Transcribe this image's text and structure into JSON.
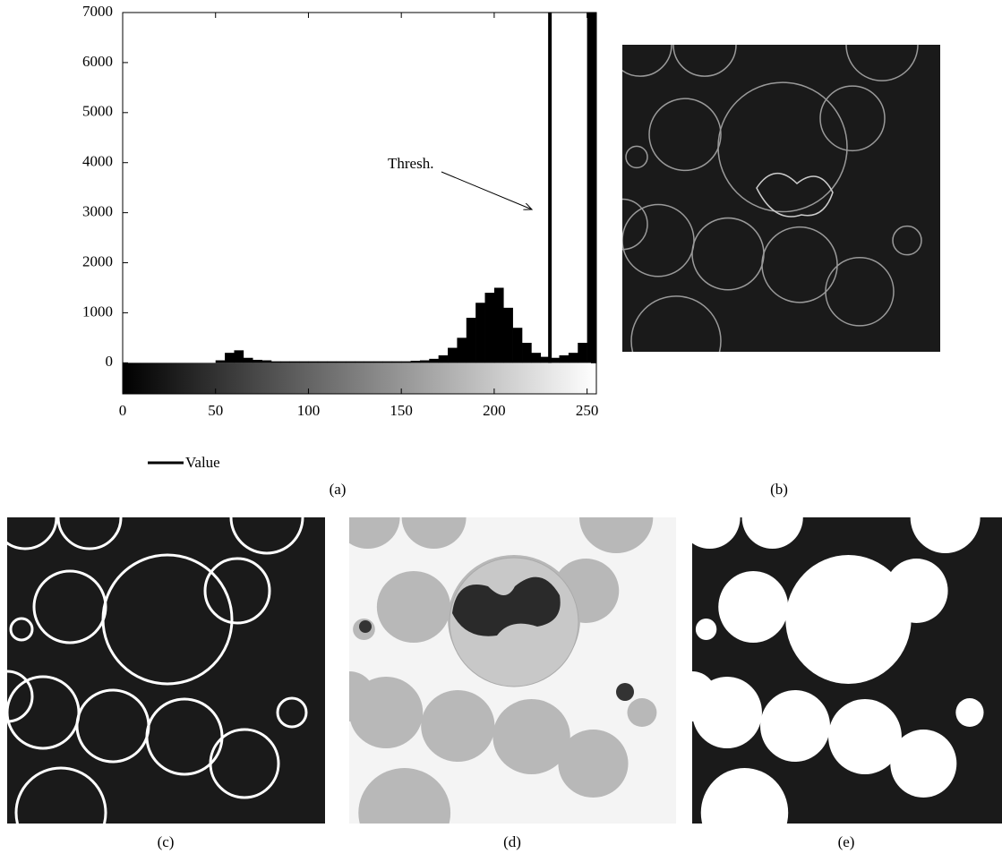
{
  "chart_data": {
    "type": "histogram",
    "bins": [
      0,
      5,
      10,
      15,
      20,
      25,
      30,
      35,
      40,
      45,
      50,
      55,
      60,
      65,
      70,
      75,
      80,
      85,
      90,
      95,
      100,
      105,
      110,
      115,
      120,
      125,
      130,
      135,
      140,
      145,
      150,
      155,
      160,
      165,
      170,
      175,
      180,
      185,
      190,
      195,
      200,
      205,
      210,
      215,
      220,
      225,
      230,
      235,
      240,
      245,
      250,
      255
    ],
    "values": [
      0,
      0,
      0,
      0,
      0,
      0,
      0,
      0,
      0,
      0,
      50,
      200,
      250,
      100,
      60,
      50,
      30,
      30,
      30,
      30,
      30,
      30,
      30,
      30,
      30,
      30,
      30,
      30,
      30,
      30,
      30,
      40,
      50,
      80,
      150,
      300,
      500,
      900,
      1200,
      1400,
      1500,
      1100,
      700,
      400,
      200,
      120,
      100,
      150,
      200,
      400,
      7000
    ],
    "color": "#000000",
    "xlim": [
      0,
      255
    ],
    "ylim": [
      -620,
      7000
    ],
    "xticks": [
      0,
      50,
      100,
      150,
      200,
      250
    ],
    "yticks": [
      0,
      1000,
      2000,
      3000,
      4000,
      5000,
      6000,
      7000
    ],
    "lines": [
      {
        "name": "Value",
        "x": 230,
        "color": "#000000"
      }
    ],
    "annotations": [
      {
        "text": "Thresh."
      }
    ]
  },
  "panels": [
    {
      "label": "(a)"
    },
    {
      "label": "(b)"
    },
    {
      "label": "(c)"
    },
    {
      "label": "(d)"
    },
    {
      "label": "(e)"
    }
  ]
}
